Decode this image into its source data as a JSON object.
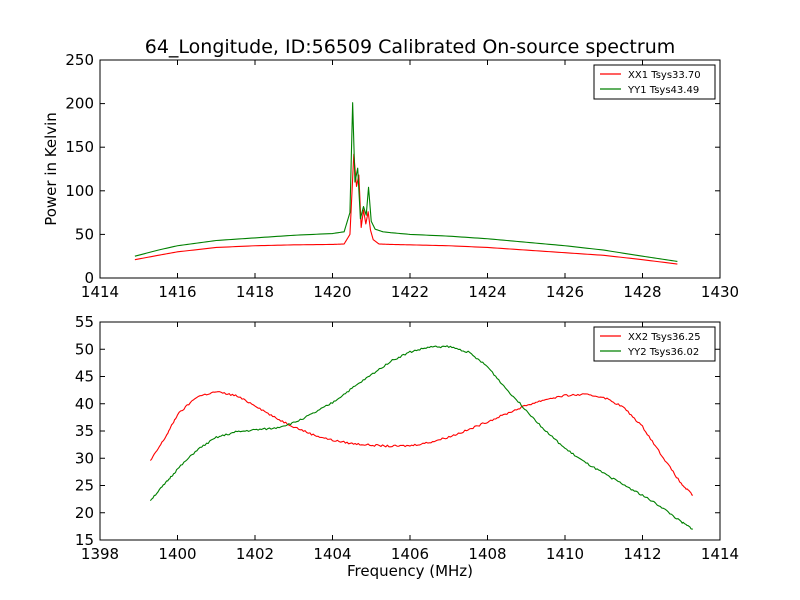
{
  "title": "64_Longitude, ID:56509 Calibrated On-source spectrum",
  "colors": {
    "xx": "#ff0000",
    "yy": "#008000"
  },
  "chart_data": [
    {
      "type": "line",
      "xlim": [
        1414,
        1430
      ],
      "ylim": [
        0,
        250
      ],
      "xticks": [
        "1414",
        "1416",
        "1418",
        "1420",
        "1422",
        "1424",
        "1426",
        "1428",
        "1430"
      ],
      "yticks": [
        "0",
        "50",
        "100",
        "150",
        "200",
        "250"
      ],
      "xlabel": "",
      "ylabel": "Power in Kelvin",
      "legend": "top-right",
      "series": [
        {
          "name": "XX1 Tsys33.70",
          "color": "#ff0000",
          "x": [
            1414.9,
            1415.5,
            1416,
            1417,
            1418,
            1419,
            1420,
            1420.3,
            1420.45,
            1420.55,
            1420.62,
            1420.68,
            1420.74,
            1420.8,
            1420.86,
            1420.92,
            1420.98,
            1421.05,
            1421.2,
            1421.5,
            1422,
            1423,
            1424,
            1425,
            1426,
            1427,
            1428,
            1428.9
          ],
          "y": [
            21,
            26,
            30,
            35,
            37,
            38,
            38.5,
            39,
            50,
            142,
            105,
            118,
            58,
            78,
            62,
            76,
            55,
            44,
            39,
            38.5,
            38,
            37,
            35,
            32,
            29,
            26,
            21,
            16
          ]
        },
        {
          "name": "YY1 Tsys43.49",
          "color": "#008000",
          "x": [
            1414.9,
            1415.5,
            1416,
            1417,
            1418,
            1419,
            1420,
            1420.3,
            1420.45,
            1420.52,
            1420.58,
            1420.65,
            1420.72,
            1420.8,
            1420.87,
            1420.93,
            1421,
            1421.1,
            1421.3,
            1421.5,
            1422,
            1423,
            1424,
            1425,
            1426,
            1427,
            1428,
            1428.9
          ],
          "y": [
            25,
            32,
            37,
            43,
            46,
            49,
            51,
            53,
            75,
            201,
            110,
            126,
            68,
            82,
            72,
            104,
            65,
            56,
            53,
            52,
            50,
            48,
            45,
            41,
            37,
            32,
            25,
            19
          ]
        }
      ]
    },
    {
      "type": "line",
      "xlim": [
        1398,
        1414
      ],
      "ylim": [
        15,
        55
      ],
      "xticks": [
        "1398",
        "1400",
        "1402",
        "1404",
        "1406",
        "1408",
        "1410",
        "1412",
        "1414"
      ],
      "yticks": [
        "15",
        "20",
        "25",
        "30",
        "35",
        "40",
        "45",
        "50",
        "55"
      ],
      "xlabel": "Frequency (MHz)",
      "ylabel": "",
      "legend": "top-right",
      "series": [
        {
          "name": "XX2 Tsys36.25",
          "color": "#ff0000",
          "x": [
            1399.3,
            1399.7,
            1400,
            1400.5,
            1401,
            1401.5,
            1402,
            1402.5,
            1403,
            1403.5,
            1404,
            1404.5,
            1405,
            1405.5,
            1406,
            1406.5,
            1407,
            1407.5,
            1408,
            1408.5,
            1409,
            1409.5,
            1410,
            1410.5,
            1411,
            1411.5,
            1412,
            1412.5,
            1413,
            1413.3
          ],
          "y": [
            29.5,
            34,
            38,
            41.3,
            42.2,
            41.5,
            39.7,
            37.5,
            35.8,
            34.3,
            33.3,
            32.7,
            32.4,
            32.2,
            32.3,
            32.9,
            33.9,
            35.2,
            36.7,
            38.2,
            39.7,
            40.8,
            41.5,
            41.7,
            41.2,
            39.4,
            35.8,
            30.5,
            25.3,
            23.2
          ]
        },
        {
          "name": "YY2 Tsys36.02",
          "color": "#008000",
          "x": [
            1399.3,
            1399.7,
            1400,
            1400.5,
            1401,
            1401.5,
            1402,
            1402.5,
            1403,
            1403.5,
            1404,
            1404.5,
            1405,
            1405.5,
            1406,
            1406.5,
            1407,
            1407.5,
            1408,
            1408.5,
            1409,
            1409.5,
            1410,
            1410.5,
            1411,
            1411.5,
            1412,
            1412.5,
            1413,
            1413.3
          ],
          "y": [
            22.3,
            25.5,
            28,
            31.5,
            33.8,
            34.8,
            35.2,
            35.5,
            36.5,
            38.2,
            40.2,
            42.8,
            45.3,
            47.8,
            49.5,
            50.4,
            50.5,
            49.5,
            46.8,
            42.6,
            38.8,
            35,
            31.8,
            29.3,
            27.2,
            25.2,
            23.2,
            21,
            18.3,
            17
          ]
        }
      ]
    }
  ]
}
